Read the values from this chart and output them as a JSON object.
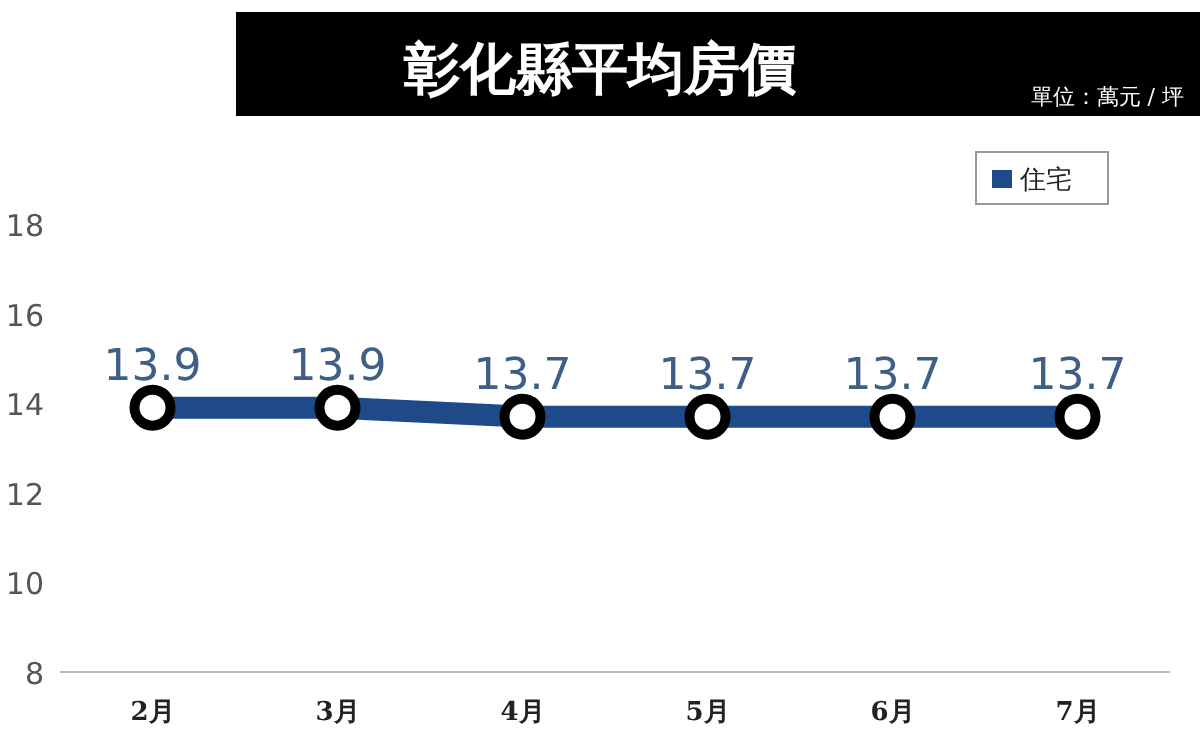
{
  "chart_data": {
    "type": "line",
    "title": "彰化縣平均房價",
    "annotations": [
      "單位：萬元 / 坪"
    ],
    "categories": [
      "2月",
      "3月",
      "4月",
      "5月",
      "6月",
      "7月"
    ],
    "series": [
      {
        "name": "住宅",
        "color": "#1f4a8a",
        "values": [
          13.9,
          13.9,
          13.7,
          13.7,
          13.7,
          13.7
        ]
      }
    ],
    "ylim": [
      8,
      18
    ],
    "yticks": [
      8,
      10,
      12,
      14,
      16,
      18
    ],
    "data_labels": true,
    "legend": "top right",
    "marker": "circle",
    "line_style": "solid",
    "grid": false
  }
}
